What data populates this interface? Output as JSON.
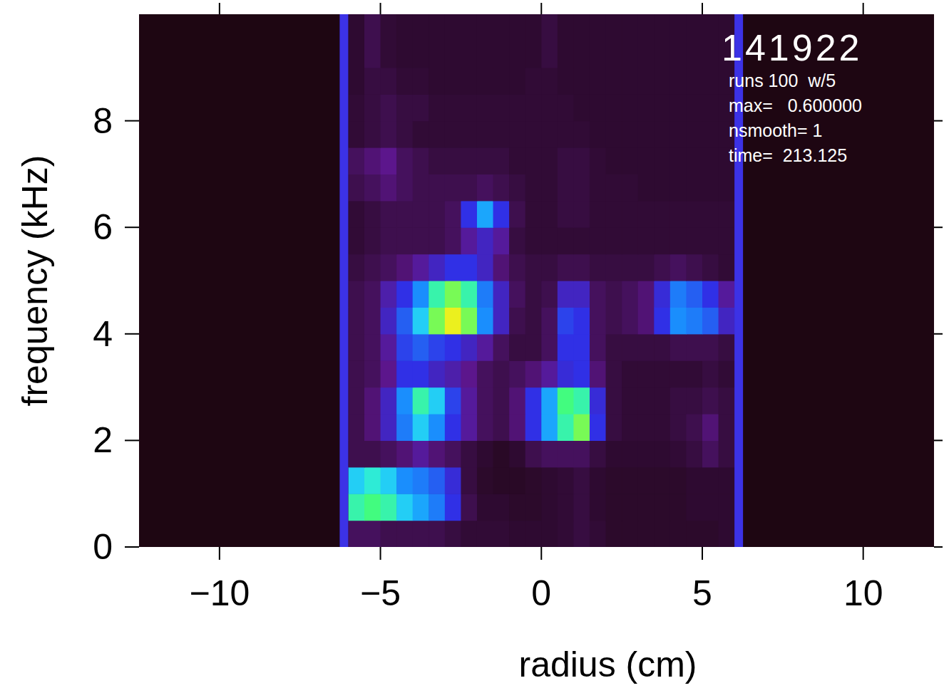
{
  "chart_data": {
    "type": "heatmap",
    "x_label": "radius (cm)",
    "y_label": "frequency (kHz)",
    "annotations": [
      "141922",
      "runs 100  w/5",
      "max=   0.600000",
      "nsmooth= 1",
      "time=  213.125"
    ],
    "xlim": [
      -12.5,
      12.2
    ],
    "ylim": [
      0,
      10
    ],
    "xticks": [
      -10,
      -5,
      0,
      5,
      10
    ],
    "yticks": [
      0,
      2,
      4,
      6,
      8
    ],
    "zlim": [
      0,
      0.6
    ],
    "x_bins": [
      -6,
      -5.5,
      -5,
      -4.5,
      -4,
      -3.5,
      -3,
      -2.5,
      -2,
      -1.5,
      -1,
      -0.5,
      0,
      0.5,
      1,
      1.5,
      2,
      2.5,
      3,
      3.5,
      4,
      4.5,
      5,
      5.5,
      6
    ],
    "y_bins": [
      0,
      0.5,
      1,
      1.5,
      2,
      2.5,
      3,
      3.5,
      4,
      4.5,
      5,
      5.5,
      6,
      6.5,
      7,
      7.5,
      8,
      8.5,
      9,
      9.5,
      10
    ],
    "cells": [
      [
        0.12,
        0.12,
        0.1,
        0.1,
        0.1,
        0.1,
        0.08,
        0.06,
        0.06,
        0.06,
        0.05,
        0.05,
        0.05,
        0.06,
        0.08,
        0.06,
        0.04,
        0.04,
        0.04,
        0.04,
        0.04,
        0.04,
        0.04,
        0.05
      ],
      [
        0.5,
        0.52,
        0.5,
        0.45,
        0.42,
        0.38,
        0.3,
        0.1,
        0.05,
        0.05,
        0.04,
        0.04,
        0.05,
        0.06,
        0.08,
        0.05,
        0.04,
        0.04,
        0.04,
        0.04,
        0.04,
        0.05,
        0.05,
        0.05
      ],
      [
        0.45,
        0.48,
        0.45,
        0.4,
        0.38,
        0.35,
        0.28,
        0.08,
        0.04,
        0.03,
        0.03,
        0.04,
        0.05,
        0.06,
        0.08,
        0.05,
        0.04,
        0.04,
        0.04,
        0.04,
        0.04,
        0.05,
        0.05,
        0.05
      ],
      [
        0.1,
        0.1,
        0.12,
        0.15,
        0.2,
        0.15,
        0.12,
        0.08,
        0.05,
        0.03,
        0.05,
        0.1,
        0.12,
        0.12,
        0.12,
        0.08,
        0.05,
        0.05,
        0.05,
        0.05,
        0.06,
        0.08,
        0.12,
        0.08
      ],
      [
        0.1,
        0.15,
        0.25,
        0.38,
        0.45,
        0.4,
        0.3,
        0.2,
        0.12,
        0.1,
        0.15,
        0.3,
        0.42,
        0.5,
        0.55,
        0.3,
        0.08,
        0.06,
        0.06,
        0.06,
        0.08,
        0.1,
        0.15,
        0.08
      ],
      [
        0.1,
        0.15,
        0.25,
        0.4,
        0.5,
        0.45,
        0.32,
        0.2,
        0.12,
        0.1,
        0.15,
        0.3,
        0.42,
        0.52,
        0.5,
        0.28,
        0.08,
        0.06,
        0.06,
        0.06,
        0.08,
        0.08,
        0.1,
        0.08
      ],
      [
        0.1,
        0.12,
        0.18,
        0.3,
        0.3,
        0.25,
        0.22,
        0.18,
        0.12,
        0.1,
        0.12,
        0.15,
        0.2,
        0.28,
        0.3,
        0.15,
        0.08,
        0.06,
        0.06,
        0.06,
        0.06,
        0.06,
        0.08,
        0.06
      ],
      [
        0.1,
        0.12,
        0.2,
        0.32,
        0.35,
        0.32,
        0.3,
        0.25,
        0.2,
        0.12,
        0.08,
        0.08,
        0.12,
        0.3,
        0.3,
        0.12,
        0.08,
        0.08,
        0.08,
        0.08,
        0.1,
        0.1,
        0.1,
        0.08
      ],
      [
        0.1,
        0.12,
        0.25,
        0.35,
        0.45,
        0.55,
        0.6,
        0.55,
        0.4,
        0.25,
        0.1,
        0.08,
        0.12,
        0.32,
        0.3,
        0.12,
        0.1,
        0.12,
        0.15,
        0.3,
        0.4,
        0.38,
        0.35,
        0.25
      ],
      [
        0.1,
        0.12,
        0.22,
        0.3,
        0.4,
        0.5,
        0.55,
        0.5,
        0.38,
        0.25,
        0.12,
        0.08,
        0.1,
        0.25,
        0.25,
        0.12,
        0.1,
        0.12,
        0.15,
        0.28,
        0.38,
        0.35,
        0.3,
        0.2
      ],
      [
        0.08,
        0.1,
        0.12,
        0.15,
        0.2,
        0.25,
        0.3,
        0.3,
        0.25,
        0.15,
        0.1,
        0.08,
        0.08,
        0.1,
        0.1,
        0.08,
        0.08,
        0.08,
        0.08,
        0.1,
        0.12,
        0.1,
        0.08,
        0.06
      ],
      [
        0.06,
        0.08,
        0.1,
        0.1,
        0.1,
        0.1,
        0.12,
        0.2,
        0.25,
        0.2,
        0.08,
        0.06,
        0.06,
        0.06,
        0.06,
        0.06,
        0.06,
        0.06,
        0.06,
        0.06,
        0.06,
        0.06,
        0.06,
        0.06
      ],
      [
        0.06,
        0.08,
        0.1,
        0.1,
        0.1,
        0.1,
        0.12,
        0.3,
        0.42,
        0.3,
        0.1,
        0.06,
        0.06,
        0.08,
        0.08,
        0.06,
        0.06,
        0.06,
        0.06,
        0.06,
        0.06,
        0.06,
        0.06,
        0.06
      ],
      [
        0.1,
        0.12,
        0.15,
        0.12,
        0.1,
        0.1,
        0.1,
        0.1,
        0.12,
        0.1,
        0.08,
        0.06,
        0.06,
        0.08,
        0.08,
        0.06,
        0.06,
        0.06,
        0.05,
        0.05,
        0.05,
        0.05,
        0.05,
        0.05
      ],
      [
        0.12,
        0.15,
        0.18,
        0.12,
        0.1,
        0.08,
        0.08,
        0.08,
        0.08,
        0.08,
        0.06,
        0.06,
        0.06,
        0.08,
        0.08,
        0.06,
        0.05,
        0.05,
        0.05,
        0.05,
        0.05,
        0.05,
        0.05,
        0.05
      ],
      [
        0.06,
        0.08,
        0.1,
        0.08,
        0.06,
        0.06,
        0.06,
        0.06,
        0.06,
        0.06,
        0.06,
        0.06,
        0.06,
        0.06,
        0.06,
        0.05,
        0.05,
        0.05,
        0.05,
        0.05,
        0.05,
        0.05,
        0.05,
        0.05
      ],
      [
        0.06,
        0.08,
        0.1,
        0.08,
        0.08,
        0.06,
        0.06,
        0.06,
        0.06,
        0.06,
        0.06,
        0.06,
        0.06,
        0.06,
        0.05,
        0.05,
        0.05,
        0.05,
        0.05,
        0.05,
        0.05,
        0.05,
        0.05,
        0.05
      ],
      [
        0.05,
        0.08,
        0.08,
        0.06,
        0.06,
        0.05,
        0.05,
        0.05,
        0.05,
        0.05,
        0.05,
        0.06,
        0.06,
        0.05,
        0.05,
        0.05,
        0.05,
        0.05,
        0.05,
        0.05,
        0.05,
        0.05,
        0.05,
        0.05
      ],
      [
        0.05,
        0.1,
        0.06,
        0.05,
        0.05,
        0.05,
        0.05,
        0.05,
        0.05,
        0.05,
        0.05,
        0.05,
        0.08,
        0.05,
        0.05,
        0.05,
        0.05,
        0.05,
        0.05,
        0.05,
        0.05,
        0.05,
        0.05,
        0.05
      ],
      [
        0.05,
        0.1,
        0.06,
        0.05,
        0.05,
        0.05,
        0.05,
        0.05,
        0.05,
        0.05,
        0.05,
        0.05,
        0.08,
        0.05,
        0.05,
        0.05,
        0.05,
        0.05,
        0.05,
        0.05,
        0.05,
        0.05,
        0.05,
        0.05
      ]
    ]
  }
}
